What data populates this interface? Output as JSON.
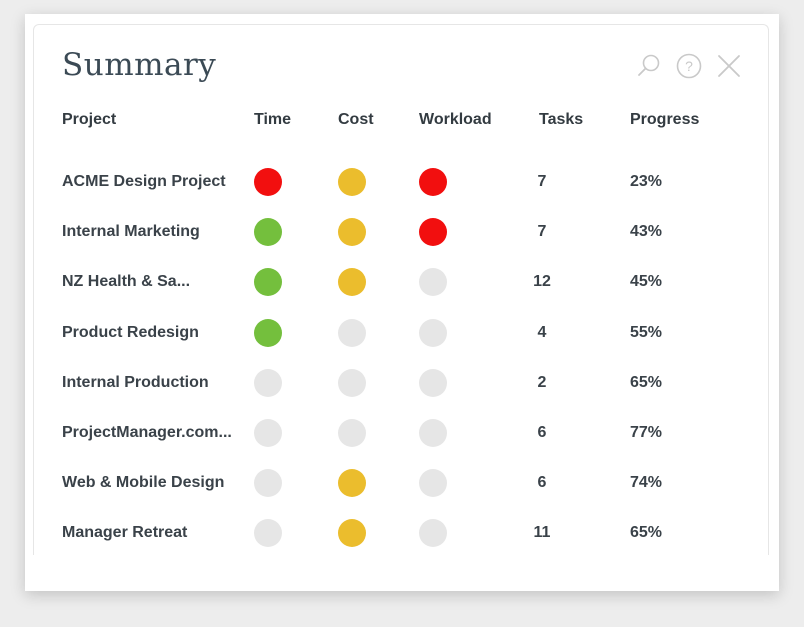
{
  "panel": {
    "title": "Summary",
    "icons": [
      "search-icon",
      "help-icon",
      "close-icon"
    ]
  },
  "columns": {
    "project": "Project",
    "time": "Time",
    "cost": "Cost",
    "workload": "Workload",
    "tasks": "Tasks",
    "progress": "Progress"
  },
  "colors": {
    "red": "#f20f0f",
    "yellow": "#ebbd2d",
    "green": "#74bf3d",
    "none": "#e6e6e6"
  },
  "rows": [
    {
      "project": "ACME Design Project",
      "time": "red",
      "cost": "yellow",
      "workload": "red",
      "tasks": "7",
      "progress": "23%"
    },
    {
      "project": "Internal Marketing",
      "time": "green",
      "cost": "yellow",
      "workload": "red",
      "tasks": "7",
      "progress": "43%"
    },
    {
      "project": "NZ Health & Sa...",
      "time": "green",
      "cost": "yellow",
      "workload": "none",
      "tasks": "12",
      "progress": "45%"
    },
    {
      "project": "Product Redesign",
      "time": "green",
      "cost": "none",
      "workload": "none",
      "tasks": "4",
      "progress": "55%"
    },
    {
      "project": "Internal Production",
      "time": "none",
      "cost": "none",
      "workload": "none",
      "tasks": "2",
      "progress": "65%"
    },
    {
      "project": "ProjectManager.com...",
      "time": "none",
      "cost": "none",
      "workload": "none",
      "tasks": "6",
      "progress": "77%"
    },
    {
      "project": "Web & Mobile Design",
      "time": "none",
      "cost": "yellow",
      "workload": "none",
      "tasks": "6",
      "progress": "74%"
    },
    {
      "project": "Manager Retreat",
      "time": "none",
      "cost": "yellow",
      "workload": "none",
      "tasks": "11",
      "progress": "65%"
    }
  ]
}
